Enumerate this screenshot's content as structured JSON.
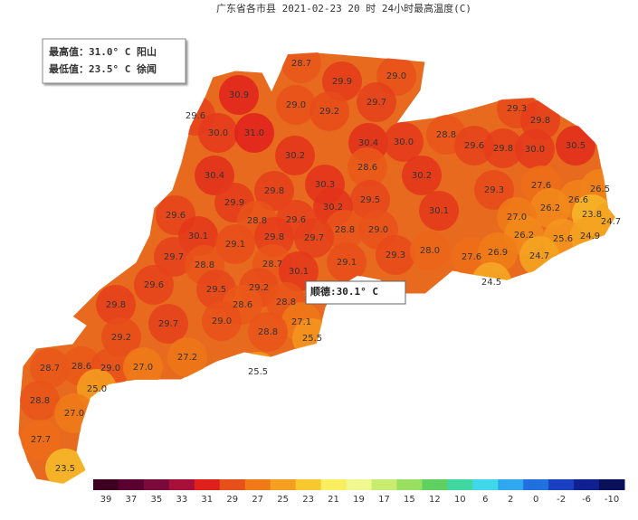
{
  "title": "广东省各市县 2021-02-23 20 时 24小时最高温度(C)",
  "info": {
    "max": "最高值：31.0° C 阳山",
    "min": "最低值：23.5° C 徐闻"
  },
  "tooltip": "顺德:30.1° C",
  "readings": [
    "28.7",
    "29.9",
    "29.0",
    "30.9",
    "29.0",
    "29.2",
    "29.7",
    "29.3",
    "29.8",
    "29.6",
    "30.0",
    "31.0",
    "28.8",
    "30.4",
    "30.0",
    "29.6",
    "29.8",
    "30.0",
    "30.5",
    "30.2",
    "28.6",
    "30.2",
    "30.4",
    "30.3",
    "29.8",
    "29.5",
    "29.3",
    "27.6",
    "26.5",
    "29.9",
    "30.2",
    "30.1",
    "26.6",
    "26.2",
    "29.6",
    "28.8",
    "29.6",
    "27.0",
    "23.8",
    "24.7",
    "29.0",
    "28.8",
    "30.1",
    "29.1",
    "29.8",
    "29.7",
    "26.2",
    "25.6",
    "24.9",
    "29.3",
    "28.0",
    "29.7",
    "29.1",
    "27.6",
    "26.9",
    "24.7",
    "28.8",
    "28.7",
    "30.1",
    "24.5",
    "29.6",
    "29.5",
    "29.2",
    "28.6",
    "28.8",
    "29.8",
    "27.1",
    "29.7",
    "29.0",
    "28.8",
    "25.5",
    "29.2",
    "27.2",
    "28.7",
    "28.6",
    "29.0",
    "27.0",
    "25.0",
    "25.5",
    "28.8",
    "27.0",
    "27.7",
    "23.5"
  ],
  "legend": {
    "labels": [
      "39",
      "37",
      "35",
      "33",
      "31",
      "29",
      "27",
      "25",
      "23",
      "21",
      "19",
      "17",
      "15",
      "12",
      "10",
      "6",
      "2",
      "0",
      "-2",
      "-6",
      "-10"
    ],
    "colors": [
      "#3d0020",
      "#5a0030",
      "#7a0a3a",
      "#a8103a",
      "#e0201c",
      "#e8501a",
      "#f07a18",
      "#f5a020",
      "#f8c830",
      "#f8ee60",
      "#f0f890",
      "#c8ec70",
      "#98de60",
      "#60d060",
      "#40d8a0",
      "#40d8e8",
      "#30a8f0",
      "#2070e0",
      "#1840c0",
      "#102090",
      "#081058"
    ]
  }
}
